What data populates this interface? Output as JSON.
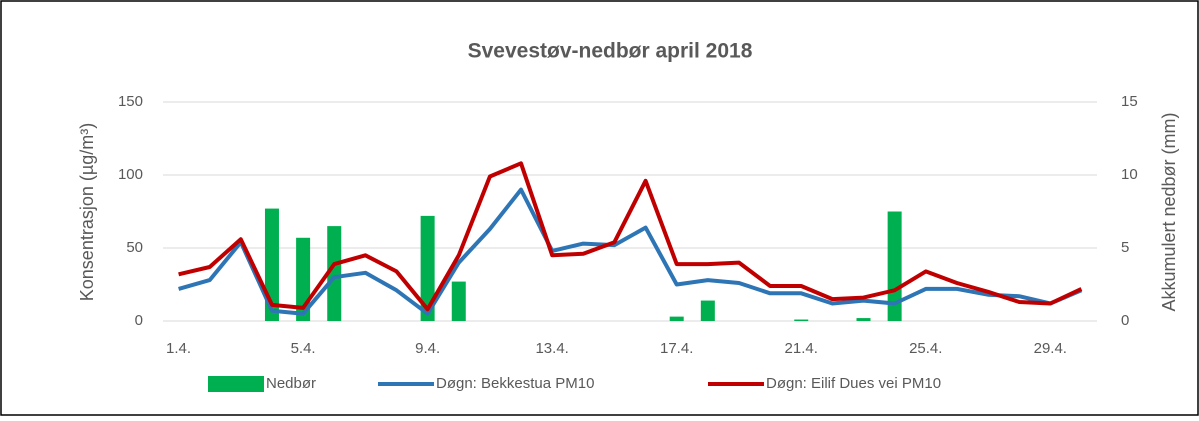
{
  "chart_data": {
    "type": "bar-line",
    "title": "Svevestøv-nedbør april 2018",
    "y_label": "Konsentrasjon (µg/m³)",
    "y2_label": "Akkumulert nedbør (mm)",
    "categories": [
      "1.4.",
      null,
      null,
      null,
      "5.4.",
      null,
      null,
      null,
      "9.4.",
      null,
      null,
      null,
      "13.4.",
      null,
      null,
      null,
      "17.4.",
      null,
      null,
      null,
      "21.4.",
      null,
      null,
      null,
      "25.4.",
      null,
      null,
      null,
      "29.4.",
      null
    ],
    "series": [
      {
        "name": "Nedbør",
        "type": "bar",
        "axis": "y2",
        "color": "#00b050",
        "values": [
          0,
          0,
          0,
          7.7,
          5.7,
          6.5,
          0,
          0,
          7.2,
          2.7,
          0,
          0,
          0,
          0,
          0,
          0,
          0.3,
          1.4,
          0,
          0,
          0.1,
          0,
          0.2,
          7.5,
          0,
          0,
          0,
          0,
          0,
          0
        ]
      },
      {
        "name": "Døgn: Bekkestua PM10",
        "type": "line",
        "color": "#2e75b6",
        "values": [
          22,
          28,
          54,
          7,
          5,
          30,
          33,
          21,
          5,
          40,
          63,
          90,
          48,
          53,
          52,
          64,
          25,
          28,
          26,
          19,
          19,
          12,
          14,
          12,
          22,
          22,
          18,
          17,
          12,
          21
        ]
      },
      {
        "name": "Døgn: Eilif Dues vei PM10",
        "type": "line",
        "color": "#c00000",
        "values": [
          32,
          37,
          56,
          11,
          9,
          39,
          45,
          34,
          8,
          45,
          99,
          108,
          45,
          46,
          54,
          96,
          39,
          39,
          40,
          24,
          24,
          15,
          16,
          21,
          34,
          26,
          20,
          13,
          12,
          22
        ]
      }
    ],
    "ylim": [
      0,
      150
    ],
    "yticks": [
      0,
      50,
      100,
      150
    ],
    "y2lim": [
      0,
      15
    ],
    "y2ticks": [
      0,
      5,
      10,
      15
    ],
    "grid": true,
    "legend": "bottom"
  }
}
